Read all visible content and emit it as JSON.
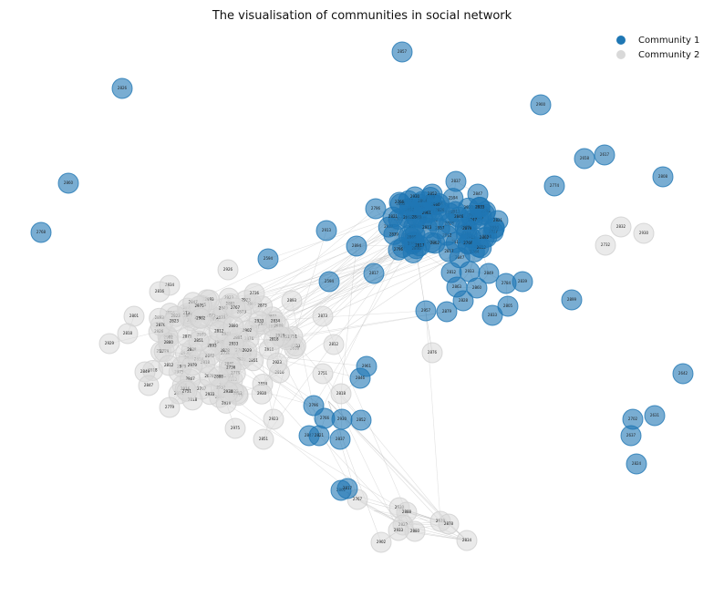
{
  "chart_data": {
    "type": "network",
    "title": "The visualisation of communities in social network",
    "legend_position": "top-right",
    "series": [
      {
        "name": "Community 1",
        "color": "#1f77b4"
      },
      {
        "name": "Community 2",
        "color": "#d9d9d9"
      }
    ],
    "isolated_nodes": {
      "community_1": [
        "2857",
        "2826",
        "2900",
        "2860",
        "2768",
        "2658",
        "2617",
        "2774",
        "2808",
        "2899",
        "2642",
        "2702",
        "2631",
        "2637",
        "2824"
      ],
      "community_2": [
        "2832",
        "2930",
        "2732",
        "2834"
      ]
    },
    "labeled_nodes": {
      "community_1": [
        "2957",
        "2863",
        "2860",
        "2961",
        "2846",
        "2796",
        "2766",
        "2930",
        "2852",
        "2837",
        "2847",
        "2821",
        "2862",
        "2817",
        "2594",
        "2894",
        "2913",
        "2812",
        "2933",
        "2849",
        "2839",
        "2784",
        "2805",
        "2833",
        "2828",
        "2879"
      ],
      "community_2": [
        "2834",
        "2816",
        "2801",
        "2818",
        "2929",
        "2849",
        "2847",
        "2779",
        "2926",
        "2736",
        "2893",
        "2873",
        "2812",
        "2751",
        "2818",
        "2876",
        "2975",
        "2851",
        "2923",
        "2930",
        "2888",
        "2823",
        "2880",
        "2933",
        "2902",
        "2767",
        "2979",
        "2878"
      ]
    }
  }
}
